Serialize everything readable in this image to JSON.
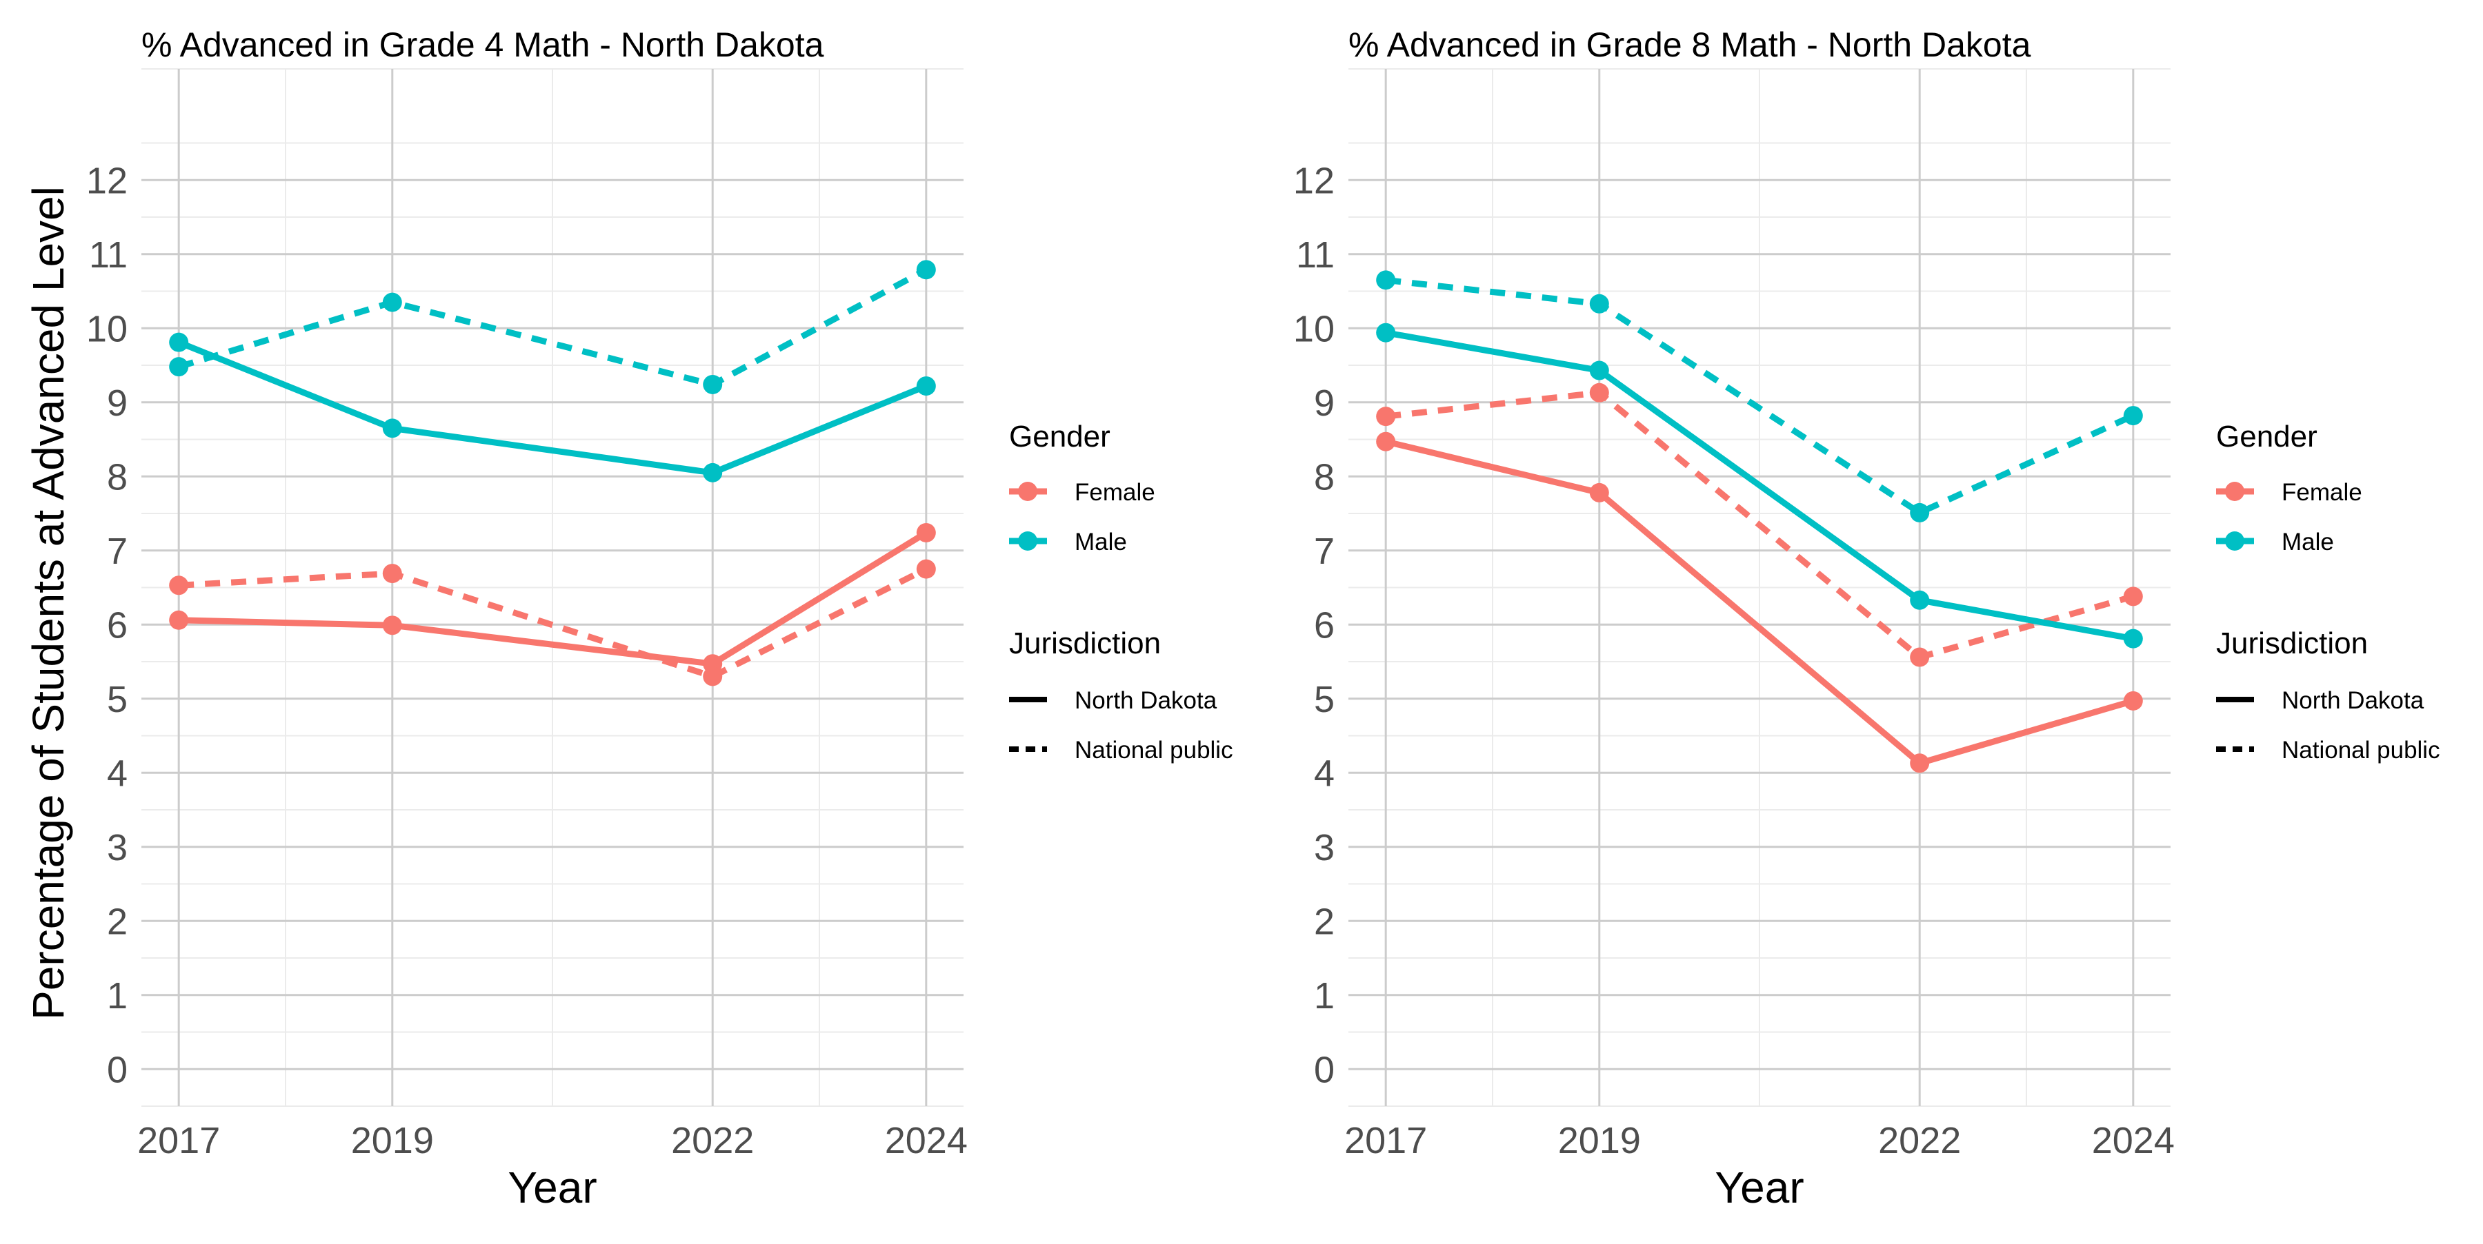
{
  "figure": {
    "ylabel": "Percentage of Students at Advanced Level"
  },
  "chart_data": [
    {
      "type": "line",
      "title": "% Advanced in Grade 4 Math - North Dakota",
      "xlabel": "Year",
      "ylabel": "Percentage of Students at Advanced Level",
      "x": [
        2017,
        2019,
        2022,
        2024
      ],
      "xticks": [
        "2017",
        "2019",
        "2022",
        "2024"
      ],
      "yticks": [
        "0",
        "1",
        "2",
        "3",
        "4",
        "5",
        "6",
        "7",
        "8",
        "9",
        "10",
        "11",
        "12"
      ],
      "xlim": [
        2016.65,
        2024.35
      ],
      "ylim": [
        -0.5,
        13.5
      ],
      "grid": true,
      "series": [
        {
          "name": "Female",
          "gender": "Female",
          "jurisdiction": "North Dakota",
          "values": [
            6.06,
            5.99,
            5.47,
            7.24
          ]
        },
        {
          "name": "Female",
          "gender": "Female",
          "jurisdiction": "National public",
          "values": [
            6.53,
            6.69,
            5.3,
            6.75
          ]
        },
        {
          "name": "Male",
          "gender": "Male",
          "jurisdiction": "North Dakota",
          "values": [
            9.81,
            8.65,
            8.05,
            9.22
          ]
        },
        {
          "name": "Male",
          "gender": "Male",
          "jurisdiction": "National public",
          "values": [
            9.48,
            10.35,
            9.24,
            10.79
          ]
        }
      ]
    },
    {
      "type": "line",
      "title": "% Advanced in Grade 8 Math - North Dakota",
      "xlabel": "Year",
      "ylabel": "",
      "x": [
        2017,
        2019,
        2022,
        2024
      ],
      "xticks": [
        "2017",
        "2019",
        "2022",
        "2024"
      ],
      "yticks": [
        "0",
        "1",
        "2",
        "3",
        "4",
        "5",
        "6",
        "7",
        "8",
        "9",
        "10",
        "11",
        "12"
      ],
      "xlim": [
        2016.65,
        2024.35
      ],
      "ylim": [
        -0.5,
        13.5
      ],
      "grid": true,
      "series": [
        {
          "name": "Female",
          "gender": "Female",
          "jurisdiction": "North Dakota",
          "values": [
            8.47,
            7.78,
            4.13,
            4.97
          ]
        },
        {
          "name": "Female",
          "gender": "Female",
          "jurisdiction": "National public",
          "values": [
            8.81,
            9.13,
            5.56,
            6.38
          ]
        },
        {
          "name": "Male",
          "gender": "Male",
          "jurisdiction": "North Dakota",
          "values": [
            9.94,
            9.43,
            6.33,
            5.81
          ]
        },
        {
          "name": "Male",
          "gender": "Male",
          "jurisdiction": "National public",
          "values": [
            10.65,
            10.33,
            7.51,
            8.82
          ]
        }
      ]
    }
  ],
  "legend": {
    "placement": "right",
    "gender_title": "Gender",
    "gender_items": [
      {
        "label": "Female",
        "color": "#F8766D"
      },
      {
        "label": "Male",
        "color": "#00BFC4"
      }
    ],
    "jurisdiction_title": "Jurisdiction",
    "jurisdiction_items": [
      {
        "label": "North Dakota",
        "linetype": "solid"
      },
      {
        "label": "National public",
        "linetype": "dashed"
      }
    ]
  },
  "colors": {
    "Female": "#F8766D",
    "Male": "#00BFC4",
    "grid_major": "#CCCCCC",
    "grid_minor": "#EBEBEB",
    "tick_text": "#4D4D4D"
  }
}
